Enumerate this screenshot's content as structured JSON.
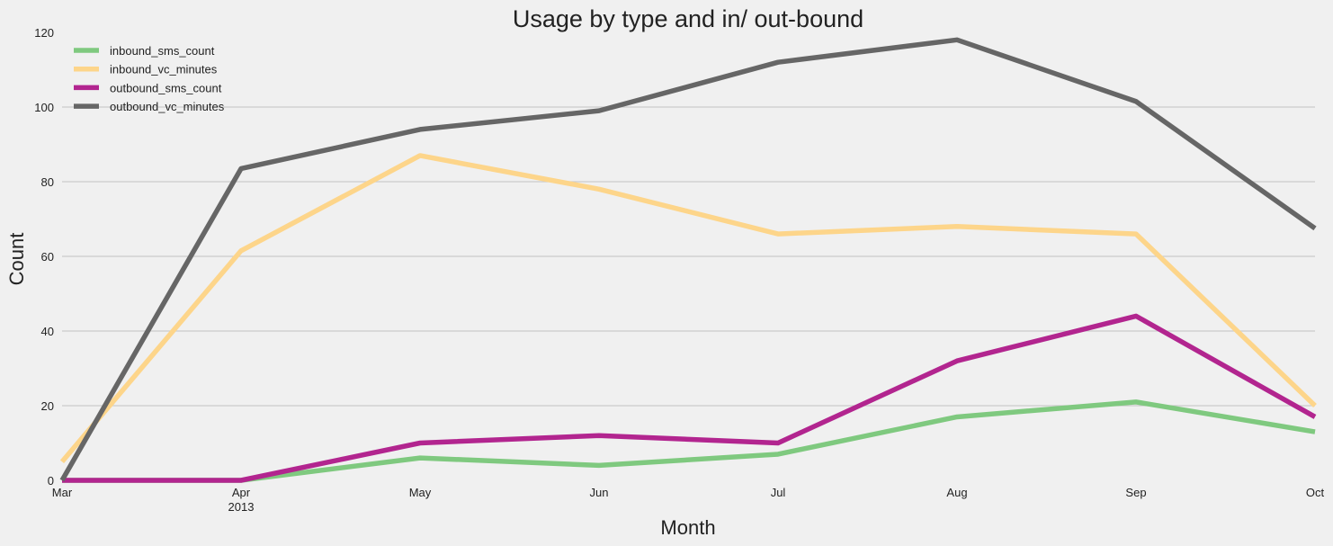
{
  "chart_data": {
    "type": "line",
    "title": "Usage by type and in/ out-bound",
    "xlabel": "Month",
    "ylabel": "Count",
    "categories": [
      "Mar",
      "Apr",
      "May",
      "Jun",
      "Jul",
      "Aug",
      "Sep",
      "Oct"
    ],
    "x_sublabels": [
      "",
      "2013",
      "",
      "",
      "",
      "",
      "",
      ""
    ],
    "ylim": [
      0,
      120
    ],
    "yticks": [
      0,
      20,
      40,
      60,
      80,
      100,
      120
    ],
    "grid": "horizontal",
    "legend_position": "top-left",
    "series": [
      {
        "name": "inbound_sms_count",
        "color": "#7fc97f",
        "values": [
          0,
          0,
          6,
          4,
          7,
          17,
          21,
          13
        ]
      },
      {
        "name": "inbound_vc_minutes",
        "color": "#fdd58a",
        "values": [
          5,
          61.5,
          87,
          78,
          66,
          68,
          66,
          20
        ]
      },
      {
        "name": "outbound_sms_count",
        "color": "#b2258f",
        "values": [
          0,
          0,
          10,
          12,
          10,
          32,
          44,
          17
        ]
      },
      {
        "name": "outbound_vc_minutes",
        "color": "#666666",
        "values": [
          0,
          83.5,
          94,
          99,
          112,
          118,
          101.5,
          67.5
        ]
      }
    ]
  }
}
